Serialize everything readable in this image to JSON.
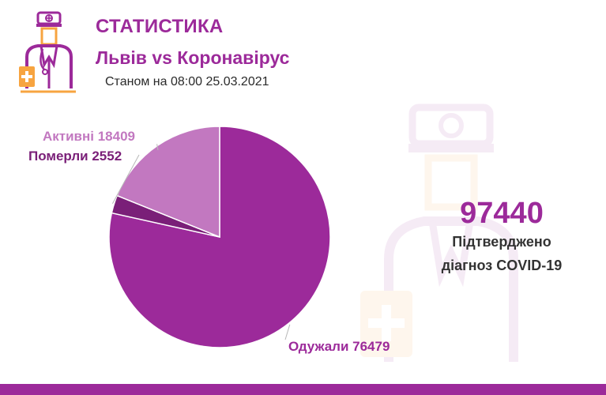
{
  "header": {
    "title": "СТАТИСТИКА",
    "subtitle": "Львів vs Коронавірус",
    "date": "Станом на 08:00 25.03.2021"
  },
  "summary": {
    "total": "97440",
    "label_line1": "Підтверджено",
    "label_line2": "діагноз COVID-19"
  },
  "colors": {
    "brand": "#9c2a9a",
    "recovered": "#9c2a9a",
    "deaths": "#7a1f78",
    "active": "#c278c0",
    "accent_orange": "#f7a440"
  },
  "icons": {
    "logo": "doctor-icon",
    "watermark": "doctor-watermark-icon"
  },
  "chart_data": {
    "type": "pie",
    "title": "",
    "slices": [
      {
        "label": "Одужали 76479",
        "name": "Одужали",
        "value": 76479,
        "color": "#9c2a9a"
      },
      {
        "label": "Померли 2552",
        "name": "Померли",
        "value": 2552,
        "color": "#7a1f78"
      },
      {
        "label": "Активні 18409",
        "name": "Активні",
        "value": 18409,
        "color": "#c278c0"
      }
    ]
  }
}
